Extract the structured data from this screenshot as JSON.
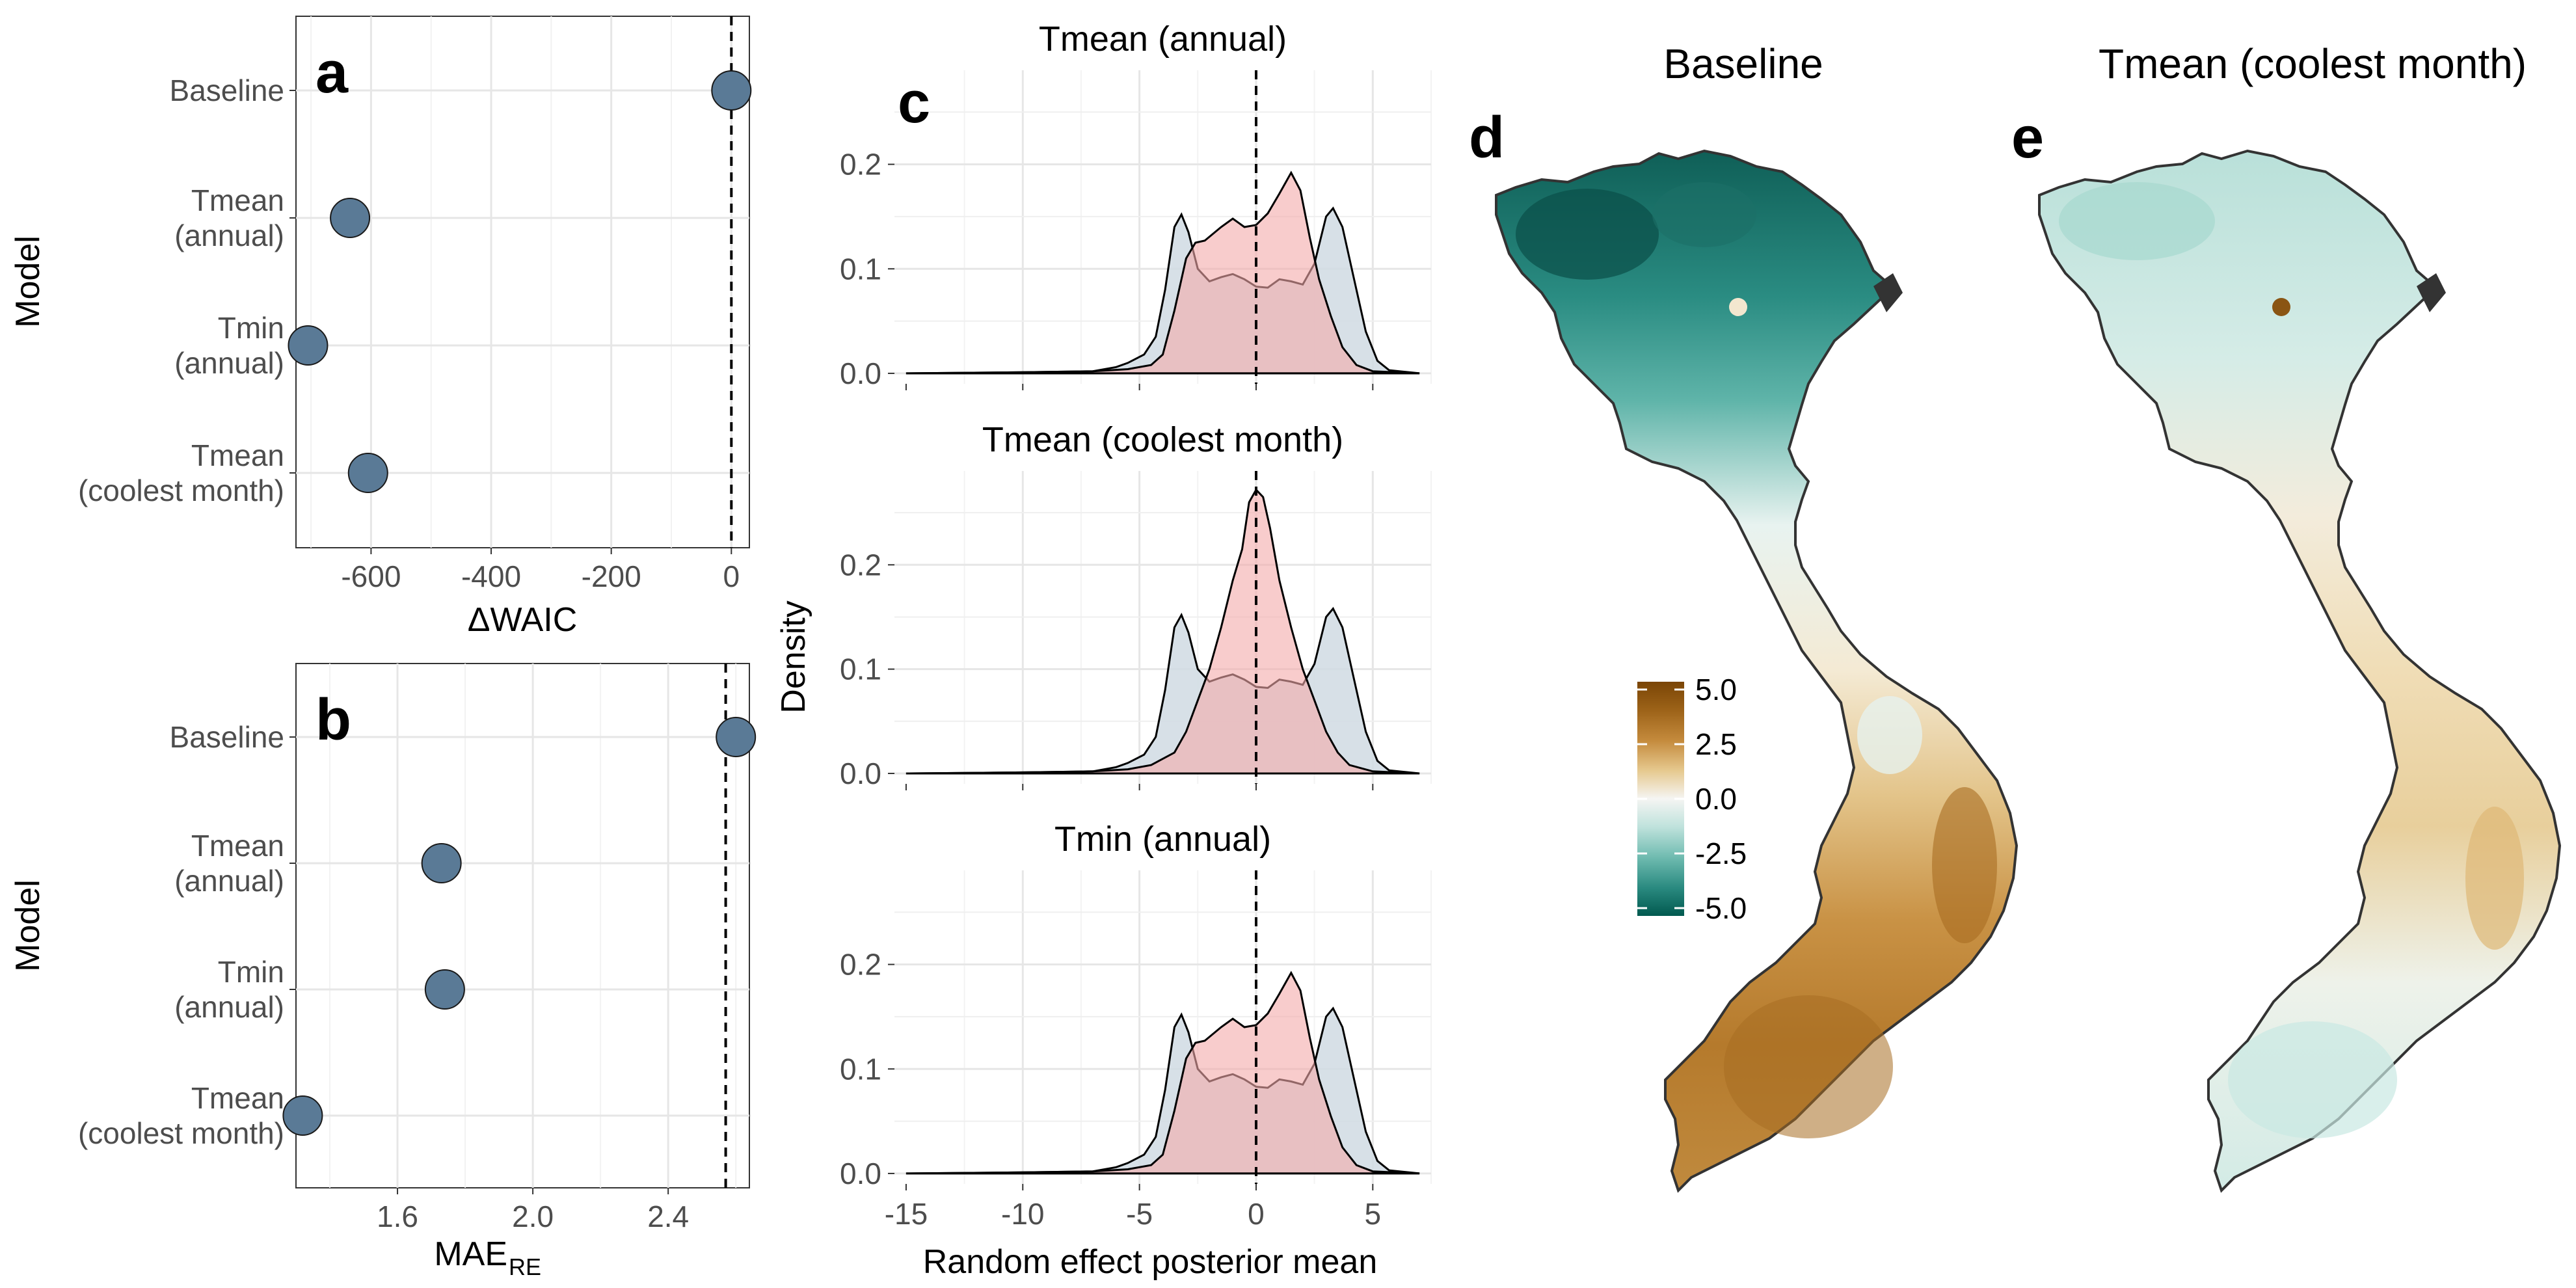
{
  "panel_labels": {
    "a": "a",
    "b": "b",
    "c": "c",
    "d": "d",
    "e": "e"
  },
  "chart_data": [
    {
      "type": "scatter",
      "panel": "a",
      "categories": [
        "Baseline",
        "Tmean\n(annual)",
        "Tmin\n(annual)",
        "Tmean\n(coolest month)"
      ],
      "values": [
        0,
        -635,
        -705,
        -605
      ],
      "xlabel": "ΔWAIC",
      "ylabel": "Model",
      "xlim": [
        -725,
        30
      ],
      "xticks": [
        -600,
        -400,
        -200,
        0
      ],
      "xtick_labels": [
        "-600",
        "-400",
        "-200",
        "0"
      ],
      "reference_line": 0,
      "point_color": "#5a7a96",
      "grid": true
    },
    {
      "type": "scatter",
      "panel": "b",
      "categories": [
        "Baseline",
        "Tmean\n(annual)",
        "Tmin\n(annual)",
        "Tmean\n(coolest month)"
      ],
      "values": [
        2.6,
        1.73,
        1.74,
        1.32
      ],
      "xlabel_main": "MAE",
      "xlabel_sub": "RE",
      "ylabel": "Model",
      "xlim": [
        1.3,
        2.64
      ],
      "xticks": [
        1.6,
        2.0,
        2.4
      ],
      "xtick_labels": [
        "1.6",
        "2.0",
        "2.4"
      ],
      "reference_line": 2.57,
      "point_color": "#5a7a96",
      "grid": true
    },
    {
      "type": "area",
      "panel": "c",
      "xlabel": "Random effect posterior mean",
      "ylabel": "Density",
      "xlim": [
        -15.5,
        7.5
      ],
      "ylim": [
        -0.01,
        0.29
      ],
      "xticks": [
        -15,
        -10,
        -5,
        0,
        5
      ],
      "xtick_labels": [
        "-15",
        "-10",
        "-5",
        "0",
        "5"
      ],
      "yticks": [
        0,
        0.1,
        0.2
      ],
      "ytick_labels": [
        "0.0",
        "0.1",
        "0.2"
      ],
      "reference_line": 0,
      "grid": true,
      "colors": {
        "baseline": "#d0dbe3",
        "covariate": "#f4aaaa"
      },
      "subplots": [
        {
          "title": "Tmean (annual)",
          "series": [
            {
              "values": [
                [
                  -15,
                  0
                ],
                [
                  -10,
                  0.001
                ],
                [
                  -7,
                  0.002
                ],
                [
                  -6,
                  0.006
                ],
                [
                  -5.5,
                  0.01
                ],
                [
                  -4.8,
                  0.018
                ],
                [
                  -4.3,
                  0.035
                ],
                [
                  -3.9,
                  0.08
                ],
                [
                  -3.5,
                  0.14
                ],
                [
                  -3.2,
                  0.152
                ],
                [
                  -2.9,
                  0.135
                ],
                [
                  -2.5,
                  0.1
                ],
                [
                  -2,
                  0.088
                ],
                [
                  -1.5,
                  0.092
                ],
                [
                  -1,
                  0.095
                ],
                [
                  -0.5,
                  0.09
                ],
                [
                  0,
                  0.083
                ],
                [
                  0.5,
                  0.082
                ],
                [
                  1,
                  0.09
                ],
                [
                  1.5,
                  0.088
                ],
                [
                  2,
                  0.085
                ],
                [
                  2.5,
                  0.105
                ],
                [
                  3,
                  0.15
                ],
                [
                  3.3,
                  0.158
                ],
                [
                  3.7,
                  0.14
                ],
                [
                  4.2,
                  0.09
                ],
                [
                  4.7,
                  0.04
                ],
                [
                  5.2,
                  0.012
                ],
                [
                  5.7,
                  0.003
                ],
                [
                  7,
                  0
                ]
              ]
            },
            {
              "values": [
                [
                  -15,
                  0
                ],
                [
                  -10,
                  0.001
                ],
                [
                  -7,
                  0.002
                ],
                [
                  -5.5,
                  0.004
                ],
                [
                  -4.5,
                  0.008
                ],
                [
                  -4,
                  0.018
                ],
                [
                  -3.5,
                  0.06
                ],
                [
                  -3,
                  0.11
                ],
                [
                  -2.6,
                  0.125
                ],
                [
                  -2.2,
                  0.127
                ],
                [
                  -1.5,
                  0.14
                ],
                [
                  -1,
                  0.148
                ],
                [
                  -0.5,
                  0.14
                ],
                [
                  0,
                  0.142
                ],
                [
                  0.5,
                  0.153
                ],
                [
                  1,
                  0.172
                ],
                [
                  1.5,
                  0.192
                ],
                [
                  1.9,
                  0.175
                ],
                [
                  2.3,
                  0.13
                ],
                [
                  2.7,
                  0.09
                ],
                [
                  3.2,
                  0.055
                ],
                [
                  3.7,
                  0.025
                ],
                [
                  4.3,
                  0.008
                ],
                [
                  5,
                  0.002
                ],
                [
                  7,
                  0
                ]
              ]
            }
          ]
        },
        {
          "title": "Tmean (coolest month)",
          "series": [
            {
              "values": [
                [
                  -15,
                  0
                ],
                [
                  -10,
                  0.001
                ],
                [
                  -7,
                  0.002
                ],
                [
                  -6,
                  0.006
                ],
                [
                  -5.5,
                  0.01
                ],
                [
                  -4.8,
                  0.018
                ],
                [
                  -4.3,
                  0.035
                ],
                [
                  -3.9,
                  0.08
                ],
                [
                  -3.5,
                  0.14
                ],
                [
                  -3.2,
                  0.152
                ],
                [
                  -2.9,
                  0.135
                ],
                [
                  -2.5,
                  0.1
                ],
                [
                  -2,
                  0.088
                ],
                [
                  -1.5,
                  0.092
                ],
                [
                  -1,
                  0.095
                ],
                [
                  -0.5,
                  0.09
                ],
                [
                  0,
                  0.083
                ],
                [
                  0.5,
                  0.082
                ],
                [
                  1,
                  0.09
                ],
                [
                  1.5,
                  0.088
                ],
                [
                  2,
                  0.085
                ],
                [
                  2.5,
                  0.105
                ],
                [
                  3,
                  0.15
                ],
                [
                  3.3,
                  0.158
                ],
                [
                  3.7,
                  0.14
                ],
                [
                  4.2,
                  0.09
                ],
                [
                  4.7,
                  0.04
                ],
                [
                  5.2,
                  0.012
                ],
                [
                  5.7,
                  0.003
                ],
                [
                  7,
                  0
                ]
              ]
            },
            {
              "values": [
                [
                  -15,
                  0
                ],
                [
                  -10,
                  0.001
                ],
                [
                  -7,
                  0.002
                ],
                [
                  -5.5,
                  0.004
                ],
                [
                  -4.5,
                  0.008
                ],
                [
                  -3.5,
                  0.02
                ],
                [
                  -3,
                  0.04
                ],
                [
                  -2.5,
                  0.07
                ],
                [
                  -2,
                  0.1
                ],
                [
                  -1.5,
                  0.14
                ],
                [
                  -1,
                  0.185
                ],
                [
                  -0.6,
                  0.215
                ],
                [
                  -0.3,
                  0.26
                ],
                [
                  0,
                  0.272
                ],
                [
                  0.3,
                  0.265
                ],
                [
                  0.6,
                  0.235
                ],
                [
                  1,
                  0.185
                ],
                [
                  1.5,
                  0.14
                ],
                [
                  2,
                  0.1
                ],
                [
                  2.5,
                  0.07
                ],
                [
                  3,
                  0.04
                ],
                [
                  3.5,
                  0.02
                ],
                [
                  4,
                  0.008
                ],
                [
                  5,
                  0.002
                ],
                [
                  7,
                  0
                ]
              ]
            }
          ]
        },
        {
          "title": "Tmin (annual)",
          "series": [
            {
              "values": [
                [
                  -15,
                  0
                ],
                [
                  -10,
                  0.001
                ],
                [
                  -7,
                  0.002
                ],
                [
                  -6,
                  0.006
                ],
                [
                  -5.5,
                  0.01
                ],
                [
                  -4.8,
                  0.018
                ],
                [
                  -4.3,
                  0.035
                ],
                [
                  -3.9,
                  0.08
                ],
                [
                  -3.5,
                  0.14
                ],
                [
                  -3.2,
                  0.152
                ],
                [
                  -2.9,
                  0.135
                ],
                [
                  -2.5,
                  0.1
                ],
                [
                  -2,
                  0.088
                ],
                [
                  -1.5,
                  0.092
                ],
                [
                  -1,
                  0.095
                ],
                [
                  -0.5,
                  0.09
                ],
                [
                  0,
                  0.083
                ],
                [
                  0.5,
                  0.082
                ],
                [
                  1,
                  0.09
                ],
                [
                  1.5,
                  0.088
                ],
                [
                  2,
                  0.085
                ],
                [
                  2.5,
                  0.105
                ],
                [
                  3,
                  0.15
                ],
                [
                  3.3,
                  0.158
                ],
                [
                  3.7,
                  0.14
                ],
                [
                  4.2,
                  0.09
                ],
                [
                  4.7,
                  0.04
                ],
                [
                  5.2,
                  0.012
                ],
                [
                  5.7,
                  0.003
                ],
                [
                  7,
                  0
                ]
              ]
            },
            {
              "values": [
                [
                  -15,
                  0
                ],
                [
                  -10,
                  0.001
                ],
                [
                  -7,
                  0.002
                ],
                [
                  -5.5,
                  0.004
                ],
                [
                  -4.5,
                  0.008
                ],
                [
                  -4,
                  0.018
                ],
                [
                  -3.5,
                  0.06
                ],
                [
                  -3,
                  0.11
                ],
                [
                  -2.6,
                  0.125
                ],
                [
                  -2.2,
                  0.127
                ],
                [
                  -1.5,
                  0.14
                ],
                [
                  -1,
                  0.148
                ],
                [
                  -0.5,
                  0.14
                ],
                [
                  0,
                  0.142
                ],
                [
                  0.5,
                  0.153
                ],
                [
                  1,
                  0.172
                ],
                [
                  1.5,
                  0.192
                ],
                [
                  1.9,
                  0.175
                ],
                [
                  2.3,
                  0.13
                ],
                [
                  2.7,
                  0.09
                ],
                [
                  3.2,
                  0.055
                ],
                [
                  3.7,
                  0.025
                ],
                [
                  4.3,
                  0.008
                ],
                [
                  5,
                  0.002
                ],
                [
                  7,
                  0
                ]
              ]
            }
          ]
        }
      ]
    },
    {
      "type": "heatmap",
      "panel": "d",
      "title": "Baseline",
      "subject": "choropleth map of Vietnam"
    },
    {
      "type": "heatmap",
      "panel": "e",
      "title": "Tmean (coolest month)",
      "subject": "choropleth map of Vietnam"
    }
  ],
  "colorbar": {
    "tick_labels": [
      "5.0",
      "2.5",
      "0.0",
      "-2.5",
      "-5.0"
    ],
    "tick_values": [
      5,
      2.5,
      0,
      -2.5,
      -5
    ],
    "stops": [
      "#8c510a",
      "#bf812d",
      "#dfc27d",
      "#f6e8c3",
      "#f5f5f5",
      "#c7eae5",
      "#80cdc1",
      "#35978f",
      "#01665e"
    ]
  }
}
